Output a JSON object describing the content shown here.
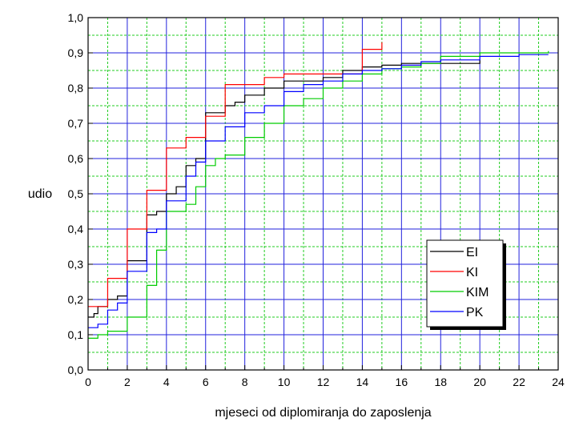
{
  "chart_data": {
    "type": "line",
    "xlabel": "mjeseci od diplomiranja do zaposlenja",
    "ylabel": "udio",
    "xlim": [
      0,
      24
    ],
    "ylim": [
      0.0,
      1.0
    ],
    "x_ticks": [
      {
        "value": 0,
        "label": "0"
      },
      {
        "value": 2,
        "label": "2"
      },
      {
        "value": 4,
        "label": "4"
      },
      {
        "value": 6,
        "label": "6"
      },
      {
        "value": 8,
        "label": "8"
      },
      {
        "value": 10,
        "label": "10"
      },
      {
        "value": 12,
        "label": "12"
      },
      {
        "value": 14,
        "label": "14"
      },
      {
        "value": 16,
        "label": "16"
      },
      {
        "value": 18,
        "label": "18"
      },
      {
        "value": 20,
        "label": "20"
      },
      {
        "value": 22,
        "label": "22"
      },
      {
        "value": 24,
        "label": "24"
      }
    ],
    "y_ticks": [
      {
        "value": 0.0,
        "label": "0,0"
      },
      {
        "value": 0.1,
        "label": "0,1"
      },
      {
        "value": 0.2,
        "label": "0,2"
      },
      {
        "value": 0.3,
        "label": "0,3"
      },
      {
        "value": 0.4,
        "label": "0,4"
      },
      {
        "value": 0.5,
        "label": "0,5"
      },
      {
        "value": 0.6,
        "label": "0,6"
      },
      {
        "value": 0.7,
        "label": "0,7"
      },
      {
        "value": 0.8,
        "label": "0,8"
      },
      {
        "value": 0.9,
        "label": "0,9"
      },
      {
        "value": 1.0,
        "label": "1,0"
      }
    ],
    "grid": {
      "vertical_green_dashed_every": 1,
      "blue_solid_every": 2,
      "horizontal_blue_solid_every": 0.1,
      "horizontal_green_dashed_midlines": true
    },
    "legend_position": "right-lower",
    "series": [
      {
        "name": "EI",
        "color": "#000000",
        "points": [
          [
            0,
            0.15
          ],
          [
            0.3,
            0.16
          ],
          [
            0.5,
            0.18
          ],
          [
            1,
            0.2
          ],
          [
            1.5,
            0.21
          ],
          [
            2,
            0.31
          ],
          [
            3,
            0.44
          ],
          [
            3.5,
            0.45
          ],
          [
            4,
            0.5
          ],
          [
            4.5,
            0.52
          ],
          [
            5,
            0.58
          ],
          [
            5.5,
            0.6
          ],
          [
            6,
            0.73
          ],
          [
            7,
            0.75
          ],
          [
            7.5,
            0.76
          ],
          [
            8,
            0.78
          ],
          [
            9,
            0.8
          ],
          [
            10,
            0.82
          ],
          [
            12,
            0.83
          ],
          [
            13,
            0.85
          ],
          [
            14,
            0.86
          ],
          [
            15,
            0.865
          ],
          [
            16,
            0.87
          ],
          [
            18,
            0.87
          ],
          [
            20,
            0.88
          ]
        ]
      },
      {
        "name": "KI",
        "color": "#ff0000",
        "points": [
          [
            0,
            0.18
          ],
          [
            1,
            0.26
          ],
          [
            2,
            0.4
          ],
          [
            3,
            0.51
          ],
          [
            4,
            0.63
          ],
          [
            5,
            0.66
          ],
          [
            6,
            0.72
          ],
          [
            7,
            0.81
          ],
          [
            9,
            0.83
          ],
          [
            10,
            0.84
          ],
          [
            14,
            0.91
          ],
          [
            15,
            0.93
          ]
        ]
      },
      {
        "name": "KIM",
        "color": "#00cc00",
        "points": [
          [
            0,
            0.09
          ],
          [
            0.5,
            0.1
          ],
          [
            1,
            0.11
          ],
          [
            2,
            0.15
          ],
          [
            3,
            0.24
          ],
          [
            3.5,
            0.34
          ],
          [
            4,
            0.45
          ],
          [
            5,
            0.47
          ],
          [
            5.5,
            0.52
          ],
          [
            6,
            0.58
          ],
          [
            6.5,
            0.6
          ],
          [
            7,
            0.61
          ],
          [
            8,
            0.66
          ],
          [
            9,
            0.7
          ],
          [
            10,
            0.75
          ],
          [
            11,
            0.77
          ],
          [
            12,
            0.8
          ],
          [
            13,
            0.82
          ],
          [
            14,
            0.84
          ],
          [
            15,
            0.855
          ],
          [
            16,
            0.86
          ],
          [
            17,
            0.87
          ],
          [
            18,
            0.89
          ],
          [
            20,
            0.9
          ],
          [
            22,
            0.9
          ],
          [
            23.5,
            0.905
          ]
        ]
      },
      {
        "name": "PK",
        "color": "#0000ff",
        "points": [
          [
            0,
            0.12
          ],
          [
            0.5,
            0.13
          ],
          [
            1,
            0.17
          ],
          [
            1.5,
            0.19
          ],
          [
            2,
            0.28
          ],
          [
            3,
            0.39
          ],
          [
            3.5,
            0.4
          ],
          [
            4,
            0.48
          ],
          [
            5,
            0.55
          ],
          [
            5.5,
            0.59
          ],
          [
            6,
            0.65
          ],
          [
            7,
            0.69
          ],
          [
            8,
            0.73
          ],
          [
            9,
            0.75
          ],
          [
            10,
            0.79
          ],
          [
            11,
            0.81
          ],
          [
            12,
            0.82
          ],
          [
            13,
            0.84
          ],
          [
            14,
            0.85
          ],
          [
            15,
            0.855
          ],
          [
            16,
            0.865
          ],
          [
            17,
            0.875
          ],
          [
            18,
            0.88
          ],
          [
            20,
            0.89
          ],
          [
            22,
            0.895
          ],
          [
            23.5,
            0.895
          ]
        ]
      }
    ]
  }
}
